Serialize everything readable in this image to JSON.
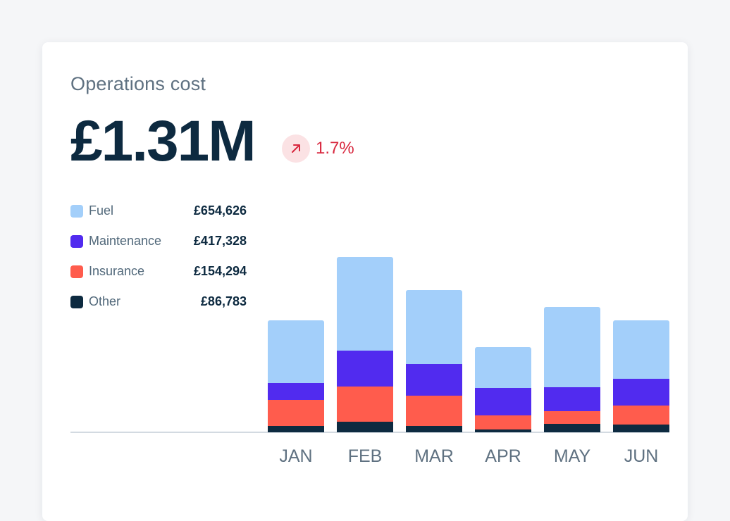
{
  "card": {
    "title": "Operations cost",
    "total": "£1.31M",
    "change": {
      "value": "1.7%",
      "direction": "up",
      "color": "#d8283f",
      "icon": "arrow-up-right-icon"
    }
  },
  "legend": [
    {
      "name": "Fuel",
      "value": "£654,626",
      "color": "#a3cffa"
    },
    {
      "name": "Maintenance",
      "value": "£417,328",
      "color": "#512bef"
    },
    {
      "name": "Insurance",
      "value": "£154,294",
      "color": "#ff5c4d"
    },
    {
      "name": "Other",
      "value": "£86,783",
      "color": "#0d2a40"
    }
  ],
  "chart_data": {
    "type": "bar",
    "stacked": true,
    "categories": [
      "JAN",
      "FEB",
      "MAR",
      "APR",
      "MAY",
      "JUN"
    ],
    "series": [
      {
        "name": "Other",
        "color": "#0d2a40",
        "values": [
          9,
          15,
          9,
          4,
          12,
          11
        ]
      },
      {
        "name": "Insurance",
        "color": "#ff5c4d",
        "values": [
          37,
          50,
          43,
          20,
          18,
          27
        ]
      },
      {
        "name": "Maintenance",
        "color": "#512bef",
        "values": [
          24,
          51,
          45,
          39,
          34,
          38
        ]
      },
      {
        "name": "Fuel",
        "color": "#a3cffa",
        "values": [
          89,
          133,
          105,
          58,
          114,
          83
        ]
      }
    ],
    "ylim": [
      0,
      250
    ],
    "xlabel": "",
    "ylabel": "",
    "grid": false
  }
}
